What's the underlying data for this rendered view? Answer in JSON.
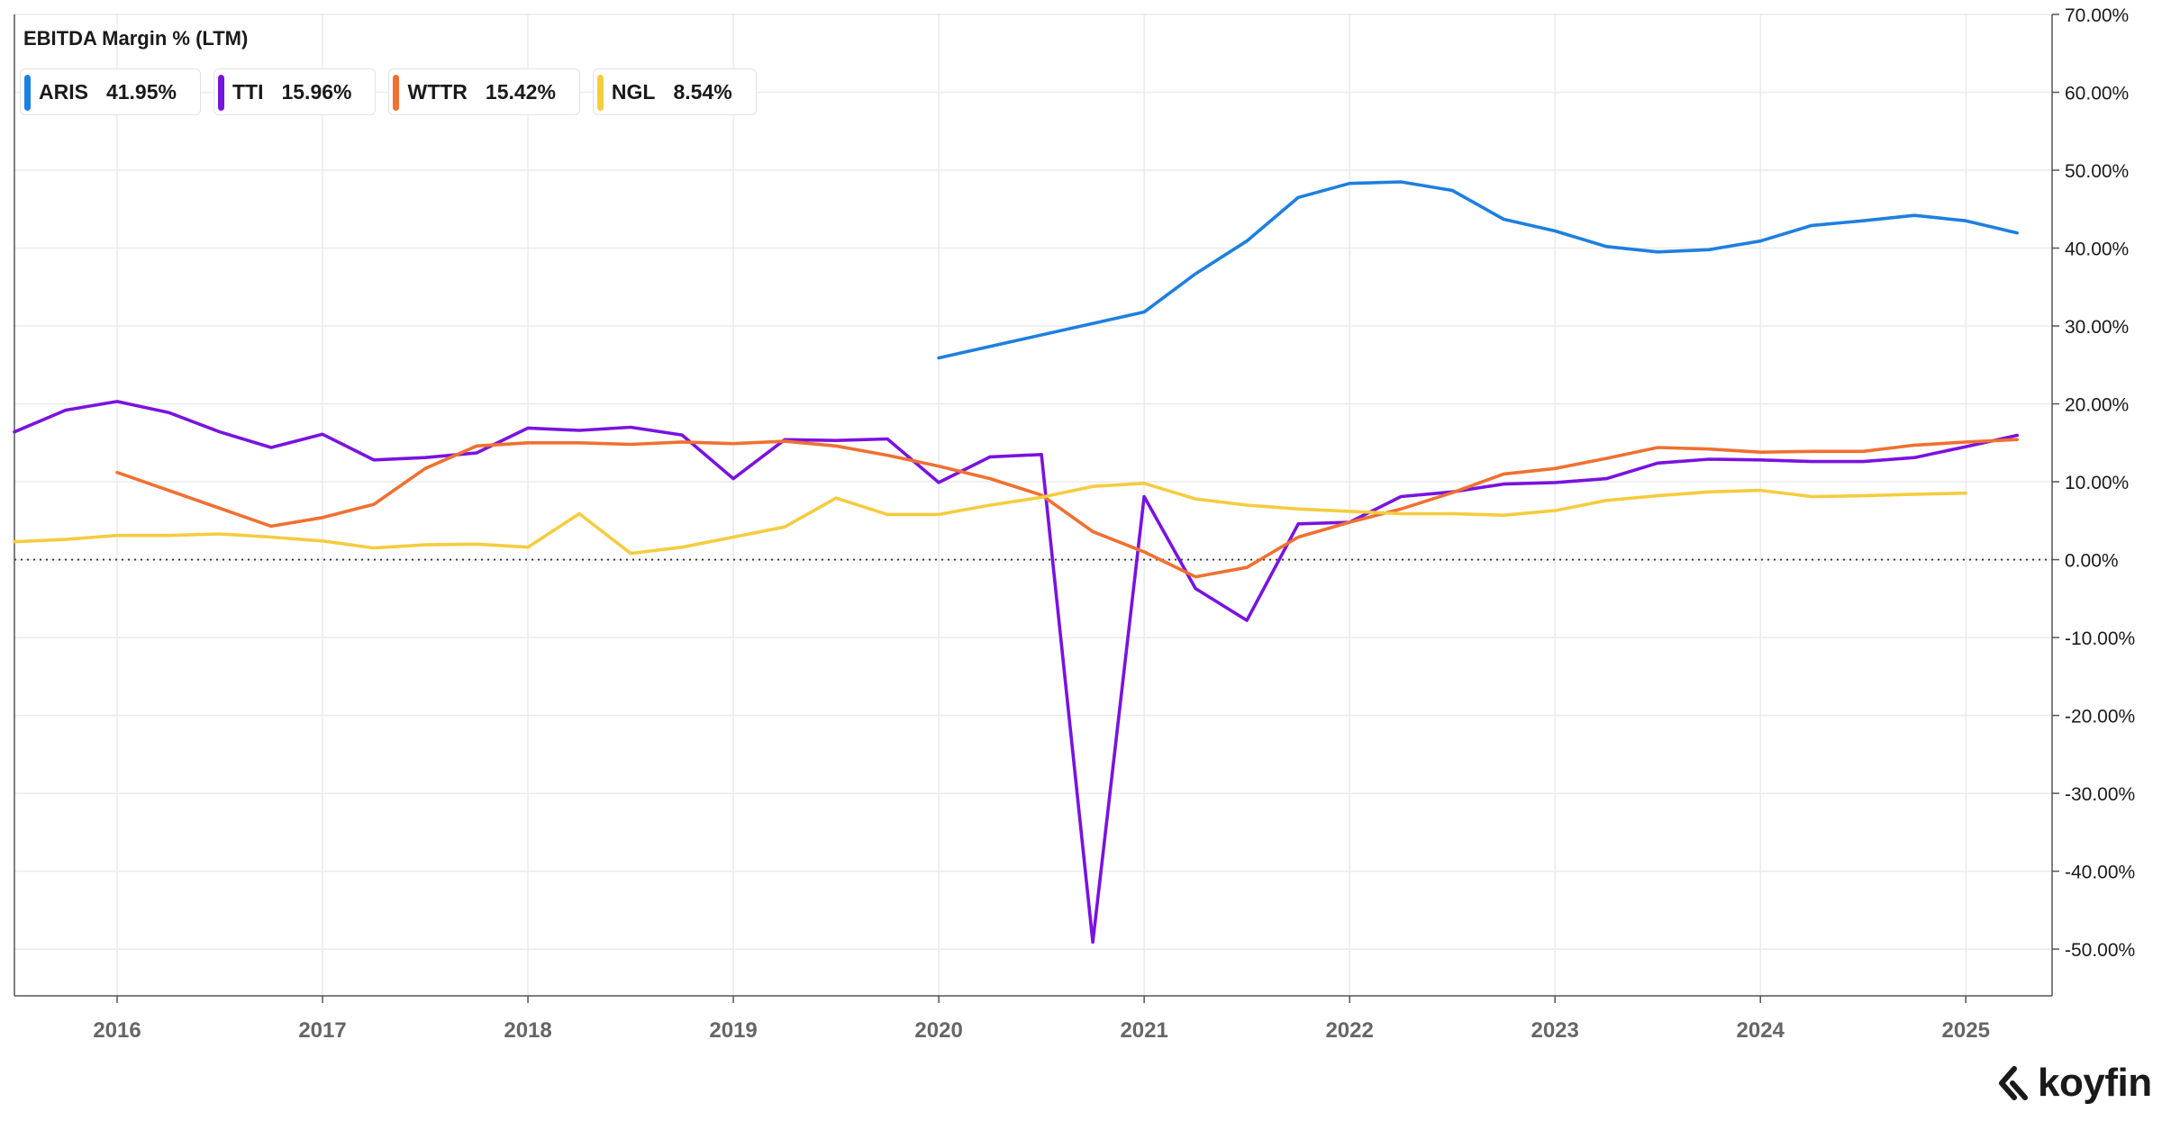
{
  "brand": {
    "name": "koyfin",
    "icon": "koyfin-logo-icon"
  },
  "chart_data": {
    "type": "line",
    "title": "EBITDA Margin % (LTM)",
    "xlabel": "",
    "ylabel": "",
    "xlim": [
      2015.5,
      2025.42
    ],
    "ylim": [
      -56,
      70
    ],
    "x_ticks": [
      2016,
      2017,
      2018,
      2019,
      2020,
      2021,
      2022,
      2023,
      2024,
      2025
    ],
    "x_tick_labels": [
      "2016",
      "2017",
      "2018",
      "2019",
      "2020",
      "2021",
      "2022",
      "2023",
      "2024",
      "2025"
    ],
    "y_ticks": [
      -50,
      -40,
      -30,
      -20,
      -10,
      0,
      10,
      20,
      30,
      40,
      50,
      60,
      70
    ],
    "y_tick_labels": [
      "-50.00%",
      "-40.00%",
      "-30.00%",
      "-20.00%",
      "-10.00%",
      "0.00%",
      "10.00%",
      "20.00%",
      "30.00%",
      "40.00%",
      "50.00%",
      "60.00%",
      "70.00%"
    ],
    "grid": true,
    "zero_line": "dotted",
    "legend_position": "top-left",
    "series": [
      {
        "name": "ARIS",
        "value_label": "41.95%",
        "color": "#1e7fe0",
        "x": [
          2020.0,
          2021.0,
          2021.25,
          2021.5,
          2021.75,
          2022.0,
          2022.25,
          2022.5,
          2022.75,
          2023.0,
          2023.25,
          2023.5,
          2023.75,
          2024.0,
          2024.25,
          2024.5,
          2024.75,
          2025.0,
          2025.25
        ],
        "y": [
          25.9,
          31.8,
          36.7,
          40.9,
          46.5,
          48.3,
          48.5,
          47.4,
          43.7,
          42.2,
          40.2,
          39.5,
          39.8,
          40.9,
          42.9,
          43.5,
          44.2,
          43.5,
          41.95
        ]
      },
      {
        "name": "TTI",
        "value_label": "15.96%",
        "color": "#7a12e0",
        "x": [
          2015.5,
          2015.75,
          2016.0,
          2016.25,
          2016.5,
          2016.75,
          2017.0,
          2017.25,
          2017.5,
          2017.75,
          2018.0,
          2018.25,
          2018.5,
          2018.75,
          2019.0,
          2019.25,
          2019.5,
          2019.75,
          2020.0,
          2020.25,
          2020.5,
          2020.75,
          2021.0,
          2021.25,
          2021.5,
          2021.75,
          2022.0,
          2022.25,
          2022.5,
          2022.75,
          2023.0,
          2023.25,
          2023.5,
          2023.75,
          2024.0,
          2024.25,
          2024.5,
          2024.75,
          2025.0,
          2025.25
        ],
        "y": [
          16.4,
          19.2,
          20.3,
          18.9,
          16.4,
          14.4,
          16.1,
          12.8,
          13.1,
          13.7,
          16.9,
          16.6,
          17.0,
          16.0,
          10.4,
          15.4,
          15.3,
          15.5,
          9.9,
          13.2,
          13.5,
          -49.1,
          8.1,
          -3.7,
          -7.8,
          4.6,
          4.8,
          8.1,
          8.7,
          9.7,
          9.9,
          10.4,
          12.4,
          12.9,
          12.8,
          12.6,
          12.6,
          13.1,
          14.5,
          15.96
        ]
      },
      {
        "name": "WTTR",
        "value_label": "15.42%",
        "color": "#f07030",
        "x": [
          2016.0,
          2016.25,
          2016.5,
          2016.75,
          2017.0,
          2017.25,
          2017.5,
          2017.75,
          2018.0,
          2018.25,
          2018.5,
          2018.75,
          2019.0,
          2019.25,
          2019.5,
          2019.75,
          2020.0,
          2020.25,
          2020.5,
          2020.75,
          2021.0,
          2021.25,
          2021.5,
          2021.75,
          2022.0,
          2022.25,
          2022.5,
          2022.75,
          2023.0,
          2023.25,
          2023.5,
          2023.75,
          2024.0,
          2024.25,
          2024.5,
          2024.75,
          2025.0,
          2025.25
        ],
        "y": [
          11.2,
          8.9,
          6.6,
          4.3,
          5.4,
          7.1,
          11.7,
          14.6,
          15.0,
          15.0,
          14.8,
          15.1,
          14.9,
          15.2,
          14.6,
          13.4,
          12.0,
          10.4,
          8.3,
          3.6,
          1.0,
          -2.2,
          -1.0,
          2.9,
          4.8,
          6.5,
          8.6,
          11.0,
          11.7,
          13.0,
          14.4,
          14.2,
          13.8,
          13.9,
          13.9,
          14.7,
          15.1,
          15.42
        ]
      },
      {
        "name": "NGL",
        "value_label": "8.54%",
        "color": "#f5cc40",
        "x": [
          2015.5,
          2015.75,
          2016.0,
          2016.25,
          2016.5,
          2016.75,
          2017.0,
          2017.25,
          2017.5,
          2017.75,
          2018.0,
          2018.25,
          2018.5,
          2018.75,
          2019.0,
          2019.25,
          2019.5,
          2019.75,
          2020.0,
          2020.25,
          2020.5,
          2020.75,
          2021.0,
          2021.25,
          2021.5,
          2021.75,
          2022.0,
          2022.25,
          2022.5,
          2022.75,
          2023.0,
          2023.25,
          2023.5,
          2023.75,
          2024.0,
          2024.25,
          2024.5,
          2024.75,
          2025.0
        ],
        "y": [
          2.3,
          2.6,
          3.1,
          3.1,
          3.3,
          2.9,
          2.4,
          1.5,
          1.9,
          2.0,
          1.6,
          5.9,
          0.8,
          1.6,
          2.9,
          4.2,
          7.9,
          5.8,
          5.8,
          7.0,
          8.0,
          9.4,
          9.8,
          7.8,
          7.0,
          6.5,
          6.2,
          5.9,
          5.9,
          5.7,
          6.3,
          7.6,
          8.2,
          8.7,
          8.9,
          8.1,
          8.2,
          8.4,
          8.54
        ]
      }
    ]
  }
}
